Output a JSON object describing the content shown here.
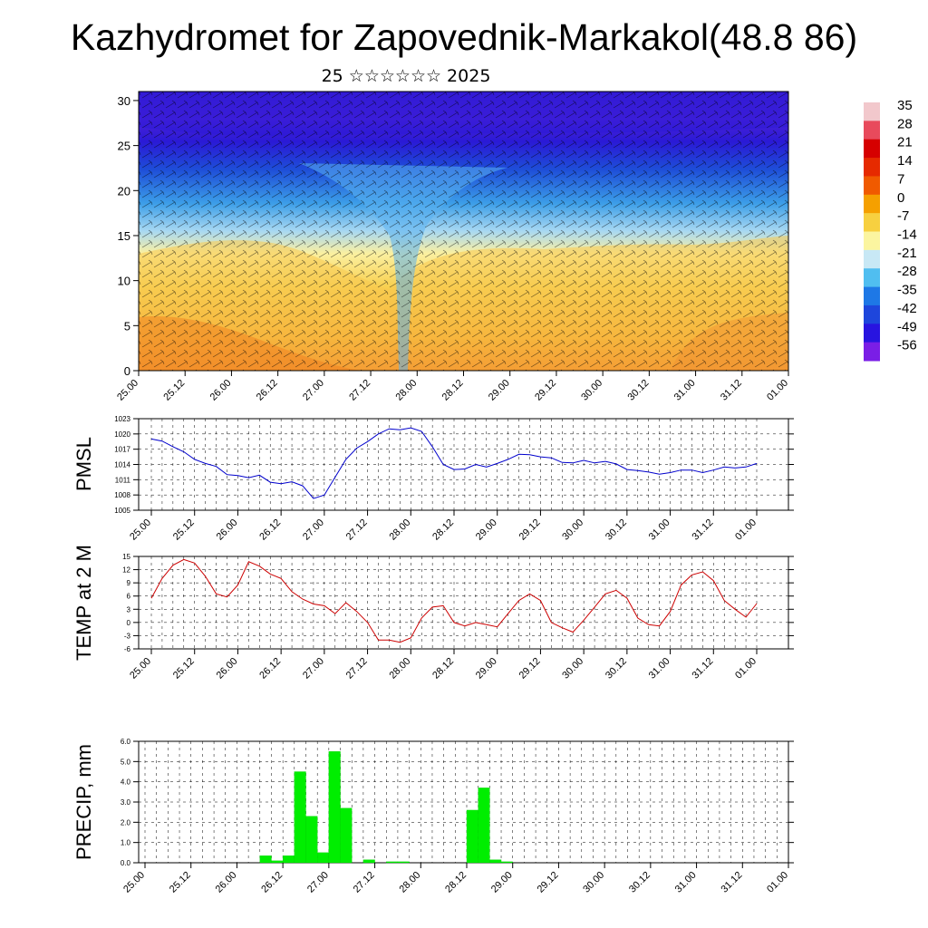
{
  "title": "Kazhydromet for Zapovednik-Markakol(48.8 86)",
  "subtitle": "25 ☆☆☆☆☆☆ 2025",
  "chart_data": [
    {
      "type": "heatmap",
      "ylim": [
        0,
        31
      ],
      "yticks": [
        "0",
        "5",
        "10",
        "15",
        "20",
        "25",
        "30"
      ],
      "x_ticks": [
        "25.00",
        "25.12",
        "26.00",
        "26.12",
        "27.00",
        "27.12",
        "28.00",
        "28.12",
        "29.00",
        "29.12",
        "30.00",
        "30.12",
        "31.00",
        "31.12",
        "01.00"
      ],
      "colorbar": {
        "labels": [
          "35",
          "28",
          "21",
          "14",
          "7",
          "0",
          "-7",
          "-14",
          "-21",
          "-28",
          "-35",
          "-42",
          "-49",
          "-56"
        ],
        "colors": [
          "#f2c8cc",
          "#e84a5c",
          "#d60000",
          "#e62a00",
          "#f05a00",
          "#f5a000",
          "#f7d040",
          "#fbf5a0",
          "#c8e8f5",
          "#50bef0",
          "#1e78e6",
          "#1e46dc",
          "#2814e0",
          "#7a1ee6"
        ]
      },
      "grid": false
    },
    {
      "type": "line",
      "ylabel": "PMSL",
      "ylim": [
        1005,
        1023
      ],
      "yticks": [
        "1023",
        "1020",
        "1017",
        "1014",
        "1011",
        "1008",
        "1005"
      ],
      "x_ticks": [
        "25.00",
        "25.12",
        "26.00",
        "26.12",
        "27.00",
        "27.12",
        "28.00",
        "28.12",
        "29.00",
        "29.12",
        "30.00",
        "30.12",
        "31.00",
        "31.12",
        "01.00"
      ],
      "color": "#0000cc",
      "values": [
        1019,
        1018.6,
        1017.5,
        1016.5,
        1015,
        1014.2,
        1013.6,
        1012,
        1011.8,
        1011.4,
        1011.9,
        1010.5,
        1010.2,
        1010.6,
        1009.8,
        1007.3,
        1008,
        1011.5,
        1015,
        1017.2,
        1018.5,
        1020,
        1021,
        1020.8,
        1021.2,
        1020.5,
        1017.5,
        1014,
        1013,
        1013.1,
        1014,
        1013.5,
        1014.2,
        1015,
        1016,
        1015.9,
        1015.5,
        1015.3,
        1014.4,
        1014.3,
        1014.8,
        1014.3,
        1014.6,
        1014.1,
        1013,
        1012.8,
        1012.5,
        1012.1,
        1012.4,
        1012.9,
        1012.9,
        1012.4,
        1012.9,
        1013.5,
        1013.3,
        1013.5,
        1014.2
      ],
      "grid": true
    },
    {
      "type": "line",
      "ylabel": "TEMP at 2 M",
      "ylim": [
        -6,
        15
      ],
      "yticks": [
        "15",
        "12",
        "9",
        "6",
        "3",
        "0",
        "-3",
        "-6"
      ],
      "x_ticks": [
        "25.00",
        "25.12",
        "26.00",
        "26.12",
        "27.00",
        "27.12",
        "28.00",
        "28.12",
        "29.00",
        "29.12",
        "30.00",
        "30.12",
        "31.00",
        "31.12",
        "01.00"
      ],
      "color": "#cc0000",
      "values": [
        5.5,
        10,
        13,
        14.3,
        13.5,
        10.5,
        6.5,
        5.8,
        8.5,
        13.8,
        12.8,
        11,
        10,
        7,
        5.3,
        4.2,
        3.8,
        2,
        4.5,
        2.5,
        0,
        -4,
        -4,
        -4.5,
        -3.5,
        1,
        3.5,
        3.8,
        0,
        -0.8,
        0,
        -0.5,
        -1,
        2,
        5,
        6.5,
        5,
        0,
        -1.2,
        -2.2,
        0.5,
        3.5,
        6.5,
        7.3,
        5.5,
        1,
        -0.5,
        -0.8,
        2.5,
        8.5,
        10.8,
        11.5,
        9.5,
        5,
        3,
        1.2,
        4.3
      ],
      "grid": true
    },
    {
      "type": "bar",
      "ylabel": "PRECIP, mm",
      "ylim": [
        0,
        6
      ],
      "yticks": [
        "6.0",
        "5.0",
        "4.0",
        "3.0",
        "2.0",
        "1.0",
        "0.0"
      ],
      "x_ticks": [
        "25.00",
        "25.12",
        "26.00",
        "26.12",
        "27.00",
        "27.12",
        "28.00",
        "28.12",
        "29.00",
        "29.12",
        "30.00",
        "30.12",
        "31.00",
        "31.12",
        "01.00"
      ],
      "color": "#00ee00",
      "values": [
        0,
        0,
        0,
        0,
        0,
        0,
        0,
        0,
        0,
        0,
        0.35,
        0.1,
        0.35,
        4.5,
        2.3,
        0.5,
        5.5,
        2.7,
        0,
        0.15,
        0,
        0.05,
        0.05,
        0,
        0,
        0,
        0,
        0,
        2.6,
        3.7,
        0.15,
        0.05,
        0,
        0,
        0,
        0,
        0,
        0,
        0,
        0,
        0,
        0,
        0,
        0,
        0,
        0,
        0,
        0,
        0,
        0,
        0,
        0,
        0,
        0,
        0,
        0
      ],
      "grid": true
    }
  ]
}
